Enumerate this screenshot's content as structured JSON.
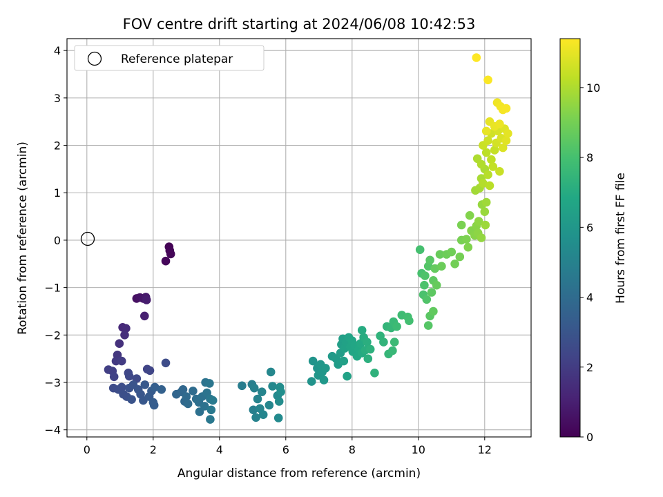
{
  "chart_data": {
    "type": "scatter",
    "title": "FOV centre drift starting at 2024/06/08 10:42:53",
    "xlabel": "Angular distance from reference (arcmin)",
    "ylabel": "Rotation from reference (arcmin)",
    "xlim": [
      -0.6,
      13.4
    ],
    "ylim": [
      -4.15,
      4.25
    ],
    "xticks": [
      0,
      2,
      4,
      6,
      8,
      10,
      12
    ],
    "yticks": [
      -4,
      -3,
      -2,
      -1,
      0,
      1,
      2,
      3,
      4
    ],
    "grid": true,
    "legend": {
      "location": "upper-left",
      "entries": [
        "Reference platepar"
      ]
    },
    "reference_point": {
      "x": 0,
      "y": 0,
      "marker": "open-circle"
    },
    "colorbar": {
      "label": "Hours from first FF file",
      "colormap": "viridis",
      "range": [
        0,
        11.4
      ],
      "ticks": [
        0,
        2,
        4,
        6,
        8,
        10
      ]
    },
    "points": [
      {
        "x": 2.48,
        "y": -0.14,
        "c": 0.05
      },
      {
        "x": 2.5,
        "y": -0.22,
        "c": 0.1
      },
      {
        "x": 2.53,
        "y": -0.29,
        "c": 0.15
      },
      {
        "x": 2.38,
        "y": -0.44,
        "c": 0.2
      },
      {
        "x": 1.5,
        "y": -1.23,
        "c": 0.5
      },
      {
        "x": 1.6,
        "y": -1.21,
        "c": 0.6
      },
      {
        "x": 1.7,
        "y": -1.23,
        "c": 0.7
      },
      {
        "x": 1.78,
        "y": -1.2,
        "c": 0.8
      },
      {
        "x": 1.8,
        "y": -1.26,
        "c": 0.9
      },
      {
        "x": 1.74,
        "y": -1.6,
        "c": 1.0
      },
      {
        "x": 1.08,
        "y": -1.84,
        "c": 1.3
      },
      {
        "x": 1.18,
        "y": -1.86,
        "c": 1.4
      },
      {
        "x": 1.14,
        "y": -2.0,
        "c": 1.5
      },
      {
        "x": 0.98,
        "y": -2.18,
        "c": 1.6
      },
      {
        "x": 0.92,
        "y": -2.42,
        "c": 1.8
      },
      {
        "x": 0.88,
        "y": -2.55,
        "c": 1.9
      },
      {
        "x": 1.05,
        "y": -2.55,
        "c": 2.0
      },
      {
        "x": 0.65,
        "y": -2.73,
        "c": 2.1
      },
      {
        "x": 0.77,
        "y": -2.76,
        "c": 2.15
      },
      {
        "x": 0.82,
        "y": -2.88,
        "c": 2.2
      },
      {
        "x": 1.82,
        "y": -2.72,
        "c": 2.3
      },
      {
        "x": 1.9,
        "y": -2.75,
        "c": 2.35
      },
      {
        "x": 2.38,
        "y": -2.59,
        "c": 2.6
      },
      {
        "x": 1.25,
        "y": -2.8,
        "c": 2.4
      },
      {
        "x": 1.28,
        "y": -2.87,
        "c": 2.45
      },
      {
        "x": 1.5,
        "y": -2.92,
        "c": 2.5
      },
      {
        "x": 0.8,
        "y": -3.12,
        "c": 2.6
      },
      {
        "x": 0.95,
        "y": -3.15,
        "c": 2.65
      },
      {
        "x": 1.05,
        "y": -3.1,
        "c": 2.7
      },
      {
        "x": 1.1,
        "y": -3.25,
        "c": 2.75
      },
      {
        "x": 1.2,
        "y": -3.3,
        "c": 2.8
      },
      {
        "x": 1.28,
        "y": -3.12,
        "c": 2.85
      },
      {
        "x": 1.35,
        "y": -3.36,
        "c": 2.9
      },
      {
        "x": 1.4,
        "y": -3.05,
        "c": 2.95
      },
      {
        "x": 1.55,
        "y": -3.15,
        "c": 3.0
      },
      {
        "x": 1.62,
        "y": -3.25,
        "c": 3.05
      },
      {
        "x": 1.7,
        "y": -3.38,
        "c": 3.1
      },
      {
        "x": 1.75,
        "y": -3.05,
        "c": 3.15
      },
      {
        "x": 1.88,
        "y": -3.3,
        "c": 3.2
      },
      {
        "x": 1.95,
        "y": -3.18,
        "c": 3.25
      },
      {
        "x": 2.0,
        "y": -3.42,
        "c": 3.3
      },
      {
        "x": 2.03,
        "y": -3.48,
        "c": 3.35
      },
      {
        "x": 2.05,
        "y": -3.1,
        "c": 3.4
      },
      {
        "x": 2.25,
        "y": -3.15,
        "c": 3.5
      },
      {
        "x": 2.7,
        "y": -3.25,
        "c": 3.7
      },
      {
        "x": 2.85,
        "y": -3.2,
        "c": 3.75
      },
      {
        "x": 2.9,
        "y": -3.15,
        "c": 3.8
      },
      {
        "x": 2.95,
        "y": -3.4,
        "c": 3.85
      },
      {
        "x": 3.0,
        "y": -3.3,
        "c": 3.9
      },
      {
        "x": 3.05,
        "y": -3.45,
        "c": 3.95
      },
      {
        "x": 3.2,
        "y": -3.18,
        "c": 4.0
      },
      {
        "x": 3.3,
        "y": -3.35,
        "c": 4.1
      },
      {
        "x": 3.38,
        "y": -3.42,
        "c": 4.15
      },
      {
        "x": 3.4,
        "y": -3.62,
        "c": 4.2
      },
      {
        "x": 3.48,
        "y": -3.3,
        "c": 4.25
      },
      {
        "x": 3.55,
        "y": -3.5,
        "c": 4.3
      },
      {
        "x": 3.58,
        "y": -3.0,
        "c": 4.35
      },
      {
        "x": 3.62,
        "y": -3.22,
        "c": 4.4
      },
      {
        "x": 3.7,
        "y": -3.02,
        "c": 4.45
      },
      {
        "x": 3.72,
        "y": -3.35,
        "c": 4.5
      },
      {
        "x": 3.72,
        "y": -3.78,
        "c": 4.55
      },
      {
        "x": 3.75,
        "y": -3.58,
        "c": 4.6
      },
      {
        "x": 3.8,
        "y": -3.38,
        "c": 4.65
      },
      {
        "x": 4.68,
        "y": -3.07,
        "c": 4.8
      },
      {
        "x": 4.98,
        "y": -3.04,
        "c": 4.85
      },
      {
        "x": 5.02,
        "y": -3.58,
        "c": 4.9
      },
      {
        "x": 5.05,
        "y": -3.12,
        "c": 4.95
      },
      {
        "x": 5.1,
        "y": -3.74,
        "c": 5.0
      },
      {
        "x": 5.15,
        "y": -3.35,
        "c": 5.05
      },
      {
        "x": 5.22,
        "y": -3.55,
        "c": 5.1
      },
      {
        "x": 5.28,
        "y": -3.2,
        "c": 5.1
      },
      {
        "x": 5.32,
        "y": -3.68,
        "c": 5.15
      },
      {
        "x": 5.5,
        "y": -3.48,
        "c": 5.2
      },
      {
        "x": 5.55,
        "y": -2.78,
        "c": 5.25
      },
      {
        "x": 5.6,
        "y": -3.08,
        "c": 5.3
      },
      {
        "x": 5.75,
        "y": -3.28,
        "c": 5.35
      },
      {
        "x": 5.78,
        "y": -3.75,
        "c": 5.4
      },
      {
        "x": 5.8,
        "y": -3.4,
        "c": 5.45
      },
      {
        "x": 5.82,
        "y": -3.1,
        "c": 5.5
      },
      {
        "x": 5.85,
        "y": -3.2,
        "c": 5.55
      },
      {
        "x": 6.78,
        "y": -2.98,
        "c": 5.8
      },
      {
        "x": 6.82,
        "y": -2.55,
        "c": 5.85
      },
      {
        "x": 6.95,
        "y": -2.7,
        "c": 5.9
      },
      {
        "x": 6.98,
        "y": -2.85,
        "c": 5.95
      },
      {
        "x": 7.05,
        "y": -2.62,
        "c": 6.0
      },
      {
        "x": 7.1,
        "y": -2.78,
        "c": 6.0
      },
      {
        "x": 7.15,
        "y": -2.95,
        "c": 6.05
      },
      {
        "x": 7.2,
        "y": -2.7,
        "c": 6.1
      },
      {
        "x": 7.4,
        "y": -2.45,
        "c": 6.15
      },
      {
        "x": 7.52,
        "y": -2.5,
        "c": 6.2
      },
      {
        "x": 7.58,
        "y": -2.62,
        "c": 6.25
      },
      {
        "x": 7.65,
        "y": -2.38,
        "c": 6.3
      },
      {
        "x": 7.68,
        "y": -2.2,
        "c": 6.35
      },
      {
        "x": 7.72,
        "y": -2.08,
        "c": 6.4
      },
      {
        "x": 7.75,
        "y": -2.55,
        "c": 6.45
      },
      {
        "x": 7.78,
        "y": -2.28,
        "c": 6.5
      },
      {
        "x": 7.82,
        "y": -2.15,
        "c": 6.5
      },
      {
        "x": 7.85,
        "y": -2.87,
        "c": 6.55
      },
      {
        "x": 7.9,
        "y": -2.05,
        "c": 6.6
      },
      {
        "x": 7.95,
        "y": -2.25,
        "c": 6.65
      },
      {
        "x": 8.0,
        "y": -2.12,
        "c": 6.7
      },
      {
        "x": 8.02,
        "y": -2.35,
        "c": 6.7
      },
      {
        "x": 8.08,
        "y": -2.22,
        "c": 6.75
      },
      {
        "x": 8.15,
        "y": -2.45,
        "c": 6.8
      },
      {
        "x": 8.2,
        "y": -2.3,
        "c": 6.85
      },
      {
        "x": 8.25,
        "y": -2.18,
        "c": 6.9
      },
      {
        "x": 8.3,
        "y": -2.38,
        "c": 6.95
      },
      {
        "x": 8.3,
        "y": -1.9,
        "c": 7.0
      },
      {
        "x": 8.35,
        "y": -2.05,
        "c": 7.05
      },
      {
        "x": 8.4,
        "y": -2.32,
        "c": 7.1
      },
      {
        "x": 8.45,
        "y": -2.15,
        "c": 7.15
      },
      {
        "x": 8.48,
        "y": -2.5,
        "c": 7.2
      },
      {
        "x": 8.55,
        "y": -2.3,
        "c": 7.25
      },
      {
        "x": 8.68,
        "y": -2.8,
        "c": 7.3
      },
      {
        "x": 8.85,
        "y": -2.02,
        "c": 7.35
      },
      {
        "x": 8.95,
        "y": -2.15,
        "c": 7.4
      },
      {
        "x": 9.05,
        "y": -1.82,
        "c": 7.45
      },
      {
        "x": 9.1,
        "y": -2.4,
        "c": 7.5
      },
      {
        "x": 9.18,
        "y": -1.85,
        "c": 7.55
      },
      {
        "x": 9.22,
        "y": -2.33,
        "c": 7.6
      },
      {
        "x": 9.25,
        "y": -1.72,
        "c": 7.65
      },
      {
        "x": 9.28,
        "y": -2.15,
        "c": 7.7
      },
      {
        "x": 9.35,
        "y": -1.82,
        "c": 7.75
      },
      {
        "x": 9.5,
        "y": -1.58,
        "c": 7.8
      },
      {
        "x": 9.68,
        "y": -1.62,
        "c": 7.9
      },
      {
        "x": 9.72,
        "y": -1.7,
        "c": 7.95
      },
      {
        "x": 10.05,
        "y": -0.2,
        "c": 8.0
      },
      {
        "x": 10.1,
        "y": -0.7,
        "c": 8.05
      },
      {
        "x": 10.15,
        "y": -1.15,
        "c": 8.1
      },
      {
        "x": 10.18,
        "y": -0.95,
        "c": 8.15
      },
      {
        "x": 10.2,
        "y": -0.75,
        "c": 8.2
      },
      {
        "x": 10.25,
        "y": -1.25,
        "c": 8.25
      },
      {
        "x": 10.3,
        "y": -0.55,
        "c": 8.3
      },
      {
        "x": 10.3,
        "y": -1.8,
        "c": 8.35
      },
      {
        "x": 10.35,
        "y": -0.42,
        "c": 8.4
      },
      {
        "x": 10.35,
        "y": -1.6,
        "c": 8.45
      },
      {
        "x": 10.4,
        "y": -1.1,
        "c": 8.5
      },
      {
        "x": 10.45,
        "y": -0.85,
        "c": 8.55
      },
      {
        "x": 10.45,
        "y": -1.5,
        "c": 8.6
      },
      {
        "x": 10.5,
        "y": -0.6,
        "c": 8.65
      },
      {
        "x": 10.55,
        "y": -0.95,
        "c": 8.7
      },
      {
        "x": 10.65,
        "y": -0.3,
        "c": 8.75
      },
      {
        "x": 10.7,
        "y": -0.55,
        "c": 8.8
      },
      {
        "x": 10.85,
        "y": -0.3,
        "c": 8.85
      },
      {
        "x": 11.0,
        "y": -0.25,
        "c": 8.9
      },
      {
        "x": 11.1,
        "y": -0.5,
        "c": 8.95
      },
      {
        "x": 11.25,
        "y": -0.35,
        "c": 9.0
      },
      {
        "x": 11.3,
        "y": 0.0,
        "c": 9.05
      },
      {
        "x": 11.3,
        "y": 0.32,
        "c": 9.1
      },
      {
        "x": 11.45,
        "y": 0.02,
        "c": 9.15
      },
      {
        "x": 11.5,
        "y": -0.15,
        "c": 9.2
      },
      {
        "x": 11.55,
        "y": 0.52,
        "c": 9.25
      },
      {
        "x": 11.6,
        "y": 0.2,
        "c": 9.3
      },
      {
        "x": 11.7,
        "y": 0.1,
        "c": 9.35
      },
      {
        "x": 11.75,
        "y": 0.3,
        "c": 9.4
      },
      {
        "x": 11.8,
        "y": 0.15,
        "c": 9.45
      },
      {
        "x": 11.82,
        "y": 0.4,
        "c": 9.5
      },
      {
        "x": 11.9,
        "y": 0.05,
        "c": 9.55
      },
      {
        "x": 11.92,
        "y": 0.75,
        "c": 9.6
      },
      {
        "x": 12.0,
        "y": 0.6,
        "c": 9.65
      },
      {
        "x": 12.02,
        "y": 0.32,
        "c": 9.7
      },
      {
        "x": 12.05,
        "y": 0.8,
        "c": 9.75
      },
      {
        "x": 11.72,
        "y": 1.05,
        "c": 9.8
      },
      {
        "x": 11.85,
        "y": 1.1,
        "c": 9.85
      },
      {
        "x": 11.9,
        "y": 1.3,
        "c": 9.9
      },
      {
        "x": 12.0,
        "y": 1.5,
        "c": 9.95
      },
      {
        "x": 11.78,
        "y": 1.72,
        "c": 10.0
      },
      {
        "x": 11.9,
        "y": 1.6,
        "c": 10.05
      },
      {
        "x": 11.95,
        "y": 1.2,
        "c": 10.1
      },
      {
        "x": 12.1,
        "y": 1.38,
        "c": 10.15
      },
      {
        "x": 12.15,
        "y": 1.15,
        "c": 10.2
      },
      {
        "x": 12.05,
        "y": 1.85,
        "c": 10.25
      },
      {
        "x": 12.2,
        "y": 1.7,
        "c": 10.3
      },
      {
        "x": 12.25,
        "y": 1.55,
        "c": 10.35
      },
      {
        "x": 12.3,
        "y": 1.9,
        "c": 10.4
      },
      {
        "x": 12.45,
        "y": 1.45,
        "c": 10.45
      },
      {
        "x": 11.95,
        "y": 2.0,
        "c": 10.5
      },
      {
        "x": 12.1,
        "y": 2.1,
        "c": 10.55
      },
      {
        "x": 12.2,
        "y": 2.25,
        "c": 10.6
      },
      {
        "x": 12.35,
        "y": 2.05,
        "c": 10.65
      },
      {
        "x": 12.4,
        "y": 2.3,
        "c": 10.7
      },
      {
        "x": 12.5,
        "y": 2.15,
        "c": 10.75
      },
      {
        "x": 12.55,
        "y": 1.95,
        "c": 10.8
      },
      {
        "x": 12.6,
        "y": 2.35,
        "c": 10.85
      },
      {
        "x": 12.65,
        "y": 2.1,
        "c": 10.9
      },
      {
        "x": 12.7,
        "y": 2.25,
        "c": 10.95
      },
      {
        "x": 12.05,
        "y": 2.3,
        "c": 11.0
      },
      {
        "x": 12.15,
        "y": 2.5,
        "c": 11.0
      },
      {
        "x": 12.3,
        "y": 2.4,
        "c": 11.05
      },
      {
        "x": 12.45,
        "y": 2.45,
        "c": 11.1
      },
      {
        "x": 12.38,
        "y": 2.9,
        "c": 11.15
      },
      {
        "x": 12.48,
        "y": 2.82,
        "c": 11.2
      },
      {
        "x": 12.55,
        "y": 2.75,
        "c": 11.25
      },
      {
        "x": 12.65,
        "y": 2.78,
        "c": 11.3
      },
      {
        "x": 12.1,
        "y": 3.38,
        "c": 11.35
      },
      {
        "x": 11.75,
        "y": 3.85,
        "c": 11.4
      }
    ]
  }
}
